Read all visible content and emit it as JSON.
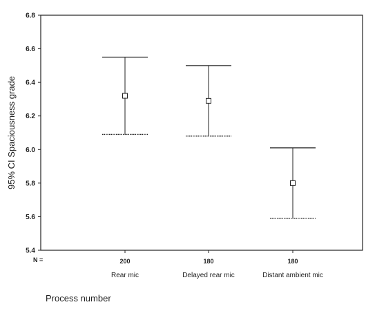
{
  "chart_data": {
    "type": "errorbar",
    "ylabel": "95% CI Spaciousness grade",
    "xlabel": "Process number",
    "ylim": [
      5.4,
      6.8
    ],
    "yticks": [
      "5.4",
      "5.6",
      "5.8",
      "6.0",
      "6.2",
      "6.4",
      "6.6",
      "6.8"
    ],
    "n_prefix": "N =",
    "categories": [
      "Rear mic",
      "Delayed rear mic",
      "Distant ambient mic"
    ],
    "n": [
      "200",
      "180",
      "180"
    ],
    "mean": [
      6.32,
      6.29,
      5.8
    ],
    "ci_lower": [
      6.09,
      6.08,
      5.59
    ],
    "ci_upper": [
      6.55,
      6.5,
      6.01
    ],
    "grid": false
  }
}
